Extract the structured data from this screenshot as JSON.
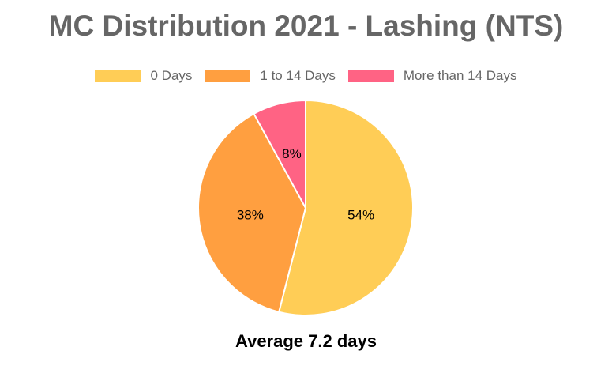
{
  "chart_data": {
    "type": "pie",
    "title": "MC Distribution 2021 - Lashing (NTS)",
    "subtitle": "Average 7.2 days",
    "legend_position": "top",
    "slices": [
      {
        "name": "0 Days",
        "value": 54,
        "label": "54%",
        "color": "#FFCD56"
      },
      {
        "name": "1 to 14 Days",
        "value": 38,
        "label": "38%",
        "color": "#FF9F40"
      },
      {
        "name": "More than 14 Days",
        "value": 8,
        "label": "8%",
        "color": "#FF6384"
      }
    ]
  }
}
